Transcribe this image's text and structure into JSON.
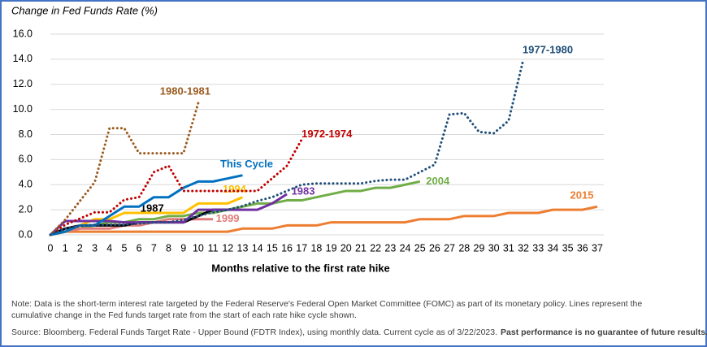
{
  "chart_data": {
    "type": "line",
    "y_axis_title": "Change in Fed Funds Rate (%)",
    "x_axis_title": "Months relative to the first rate hike",
    "xlim": [
      0,
      37
    ],
    "xticks": [
      0,
      1,
      2,
      3,
      4,
      5,
      6,
      7,
      8,
      9,
      10,
      11,
      12,
      13,
      14,
      15,
      16,
      17,
      18,
      19,
      20,
      21,
      22,
      23,
      24,
      25,
      26,
      27,
      28,
      29,
      30,
      31,
      32,
      33,
      34,
      35,
      36,
      37
    ],
    "ylim": [
      0,
      16
    ],
    "yticks": [
      {
        "value": 0,
        "label": "0.0"
      },
      {
        "value": 2,
        "label": "2.0"
      },
      {
        "value": 4,
        "label": "4.0"
      },
      {
        "value": 6,
        "label": "6.0"
      },
      {
        "value": 8,
        "label": "8.0"
      },
      {
        "value": 10,
        "label": "10.0"
      },
      {
        "value": 12,
        "label": "12.0"
      },
      {
        "value": 14,
        "label": "14.0"
      },
      {
        "value": 16,
        "label": "16.0"
      }
    ],
    "grid": true,
    "series": [
      {
        "name": "2015",
        "color": "#ed7d31",
        "dotted": false,
        "values": [
          0,
          0.25,
          0.25,
          0.25,
          0.25,
          0.25,
          0.25,
          0.25,
          0.25,
          0.25,
          0.25,
          0.25,
          0.25,
          0.5,
          0.5,
          0.5,
          0.75,
          0.75,
          0.75,
          1.0,
          1.0,
          1.0,
          1.0,
          1.0,
          1.0,
          1.25,
          1.25,
          1.25,
          1.5,
          1.5,
          1.5,
          1.75,
          1.75,
          1.75,
          2.0,
          2.0,
          2.0,
          2.25
        ]
      },
      {
        "name": "2004",
        "color": "#70ad47",
        "dotted": false,
        "values": [
          0,
          0.25,
          0.5,
          0.75,
          1.0,
          1.0,
          1.25,
          1.25,
          1.5,
          1.5,
          1.75,
          1.75,
          2.0,
          2.25,
          2.5,
          2.5,
          2.75,
          2.75,
          3.0,
          3.25,
          3.5,
          3.5,
          3.75,
          3.75,
          4.0,
          4.25
        ]
      },
      {
        "name": "1999",
        "color": "#e07b7b",
        "dotted": false,
        "values": [
          0,
          0.25,
          0.5,
          0.5,
          0.5,
          0.75,
          0.75,
          1.0,
          1.25,
          1.25,
          1.25,
          1.25
        ]
      },
      {
        "name": "1987",
        "color": "#000000",
        "dotted": false,
        "values": [
          0,
          0.5,
          0.75,
          0.75,
          0.75,
          0.75,
          1.0,
          1.0,
          1.0,
          1.0,
          1.5,
          2.0,
          2.0
        ]
      },
      {
        "name": "1994",
        "color": "#ffc000",
        "dotted": false,
        "values": [
          0,
          0.25,
          0.75,
          1.25,
          1.25,
          1.75,
          1.75,
          1.75,
          1.75,
          1.75,
          2.5,
          2.5,
          2.5,
          3.0
        ]
      },
      {
        "name": "1983",
        "color": "#7030a0",
        "dotted": false,
        "values": [
          0,
          1.1,
          1.1,
          1.1,
          1.1,
          1.0,
          1.0,
          1.0,
          1.0,
          1.0,
          2.0,
          2.0,
          2.0,
          2.0,
          2.0,
          2.5,
          3.25
        ]
      },
      {
        "name": "This Cycle",
        "color": "#0070c0",
        "dotted": false,
        "values": [
          0,
          0.25,
          0.75,
          0.75,
          1.5,
          2.25,
          2.25,
          3.0,
          3.0,
          3.75,
          4.25,
          4.25,
          4.5,
          4.75
        ]
      },
      {
        "name": "1972-1974",
        "color": "#c00000",
        "dotted": true,
        "values": [
          0,
          0.8,
          1.3,
          1.8,
          1.8,
          2.8,
          3.0,
          5.0,
          5.5,
          3.5,
          3.5,
          3.5,
          3.5,
          3.5,
          3.5,
          4.5,
          5.5,
          7.6
        ]
      },
      {
        "name": "1980-1981",
        "color": "#9c5a1f",
        "dotted": true,
        "values": [
          0,
          1.2,
          2.7,
          4.2,
          8.5,
          8.5,
          6.5,
          6.5,
          6.5,
          6.5,
          10.5
        ]
      },
      {
        "name": "1977-1980",
        "color": "#1f4e79",
        "dotted": true,
        "values": [
          0,
          0.5,
          0.7,
          0.8,
          0.8,
          0.8,
          0.9,
          1.0,
          1.0,
          1.2,
          1.5,
          1.8,
          2.0,
          2.3,
          2.7,
          3.0,
          3.5,
          4.0,
          4.1,
          4.1,
          4.1,
          4.1,
          4.3,
          4.4,
          4.4,
          5.0,
          5.6,
          9.6,
          9.7,
          8.2,
          8.1,
          9.1,
          14.0
        ]
      }
    ]
  },
  "footer": {
    "note": "Note: Data is the short-term interest rate targeted by the Federal Reserve's Federal Open Market Committee (FOMC) as part of its monetary policy.  Lines represent the",
    "note_cont": "cumulative change in the Fed funds target rate from the start of each rate hike cycle shown.",
    "source": "Source: Bloomberg. Federal Funds Target Rate - Upper Bound (FDTR Index), using monthly data.  Current cycle as of 3/22/2023.",
    "disclaimer": "Past performance is no guarantee of future results."
  }
}
